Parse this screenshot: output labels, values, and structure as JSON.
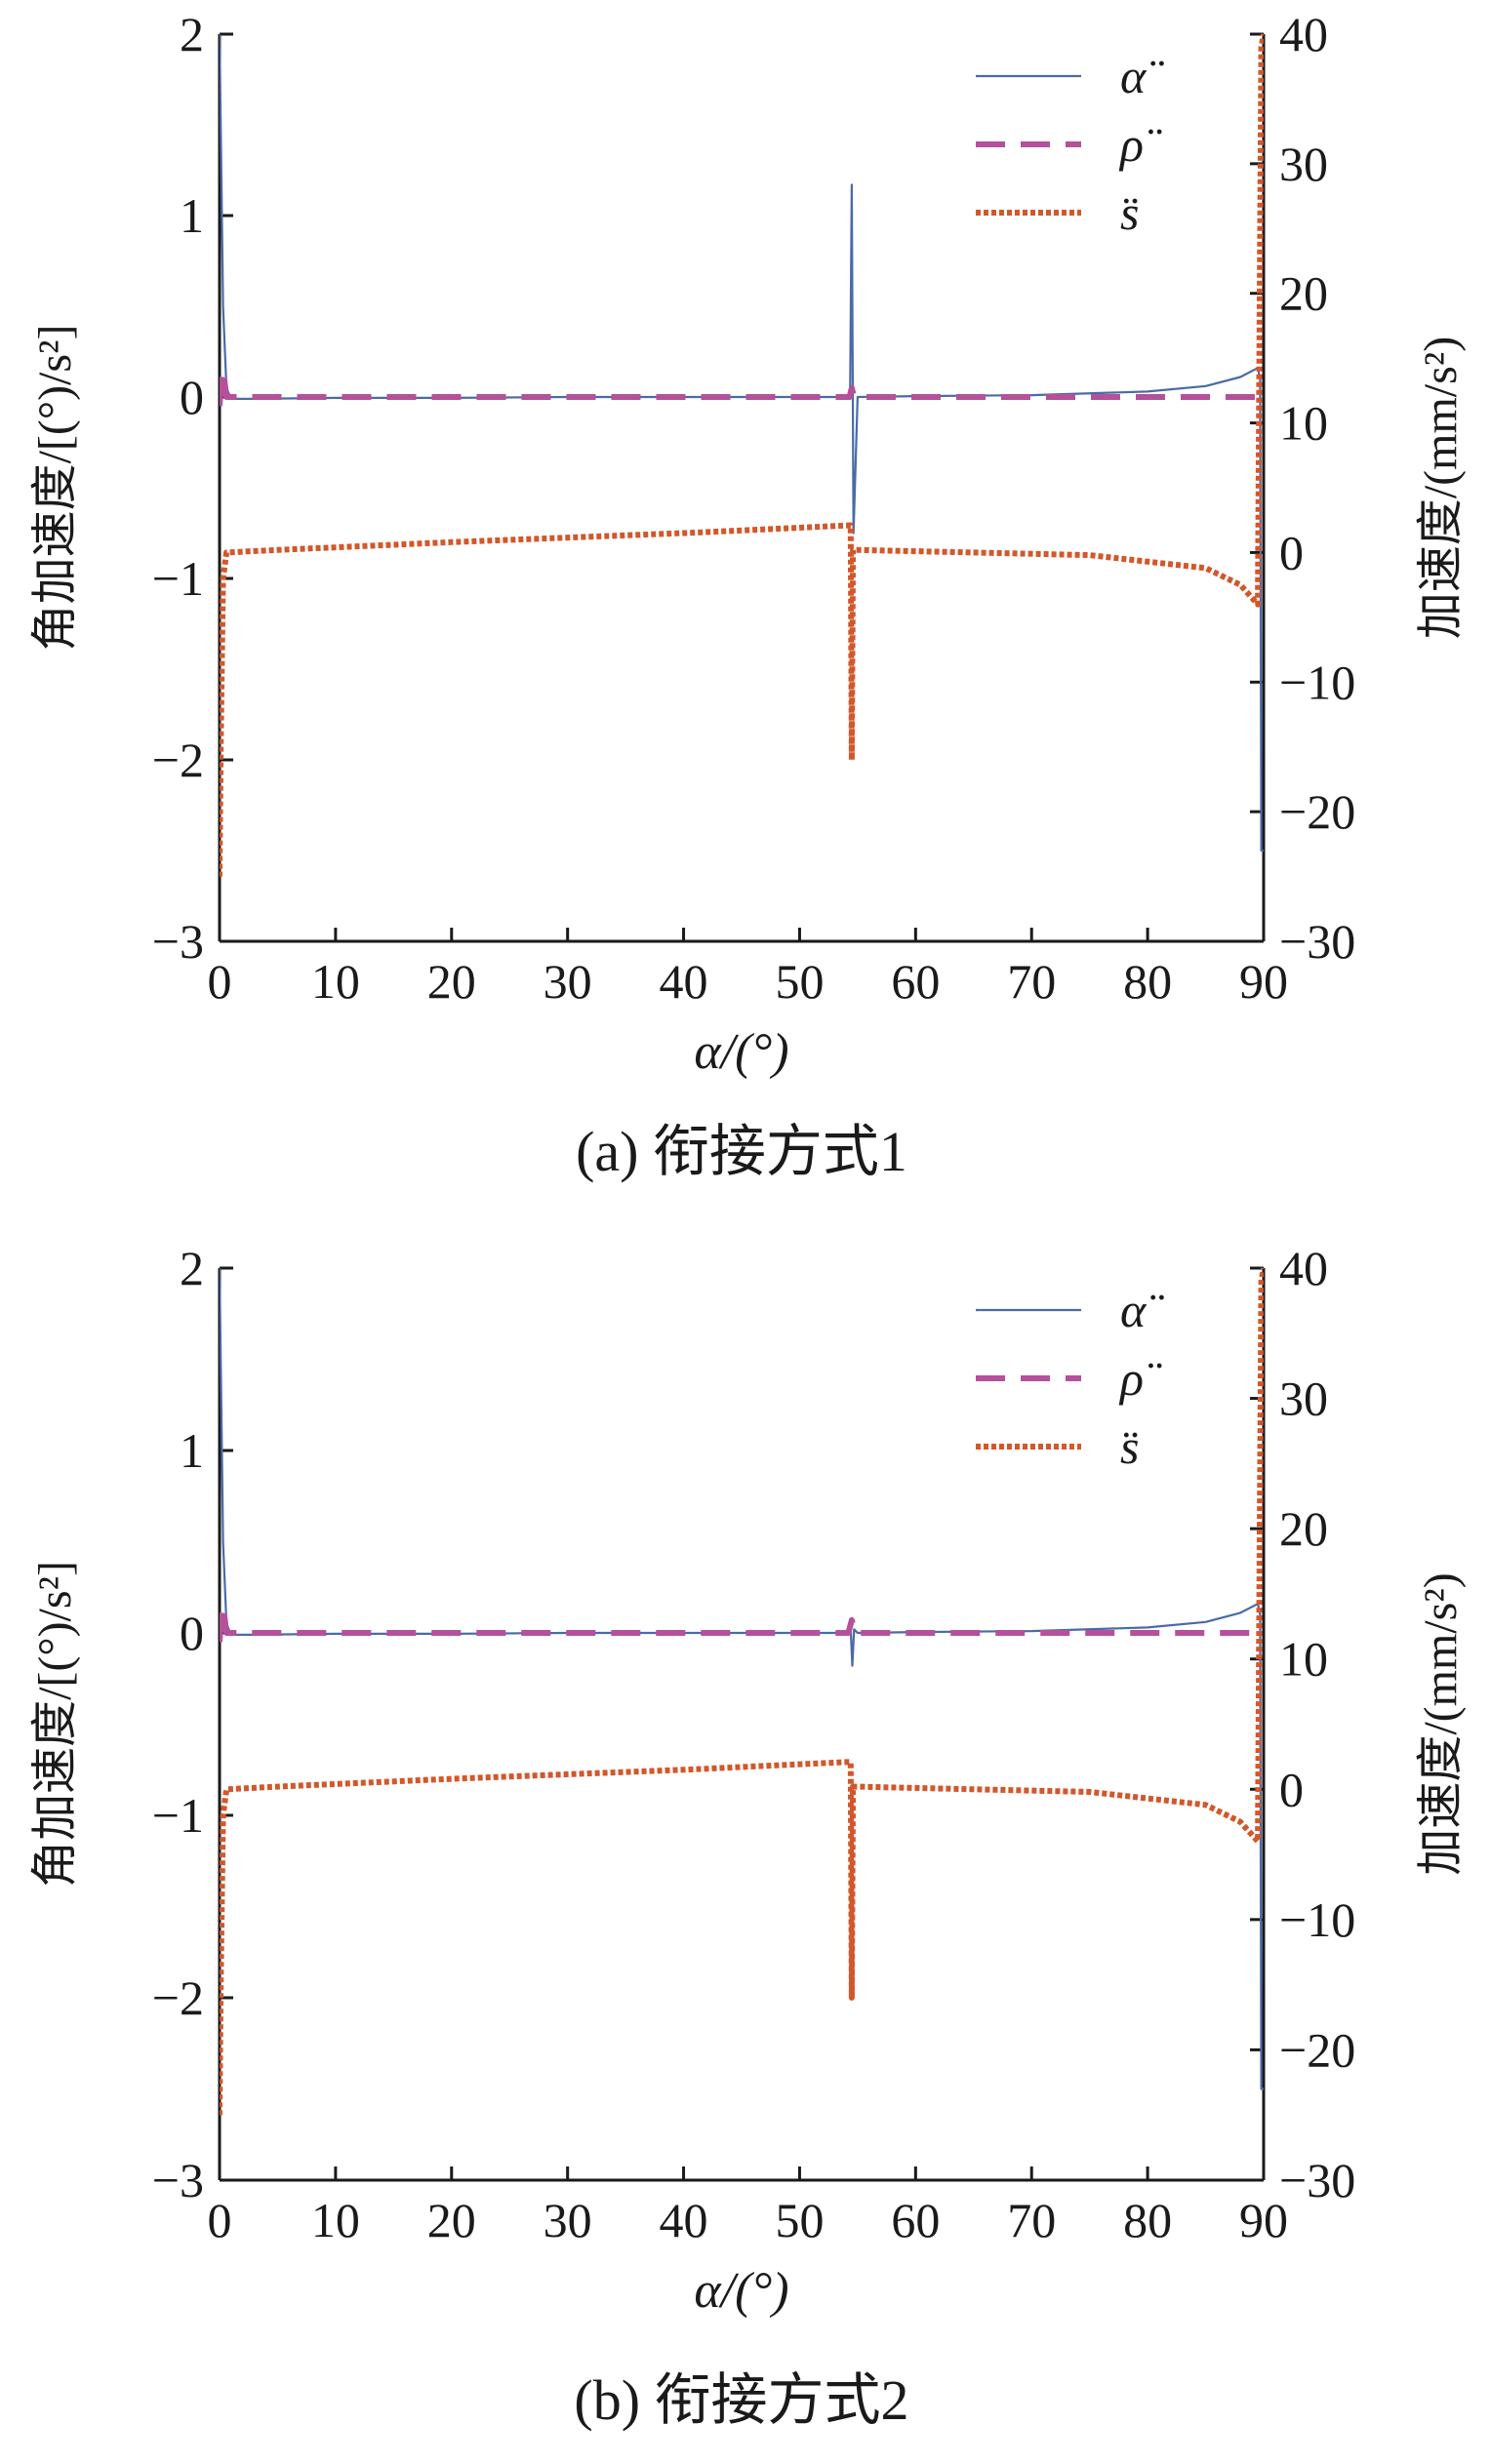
{
  "colors": {
    "alpha_line": "#4a6aa8",
    "rho_line": "#b4519a",
    "s_line": "#d2572a",
    "axis": "#1a1a1a"
  },
  "chart_data": [
    {
      "type": "line",
      "caption": "(a)  衔接方式1",
      "xlabel": "α/(°)",
      "ylabel_left": "角加速度/[(°)/s²]",
      "ylabel_right": "加速度/(mm/s²)",
      "xlim": [
        0,
        90
      ],
      "ylim_left": [
        -3,
        2
      ],
      "ylim_right": [
        -30,
        40
      ],
      "x_ticks": [
        "0",
        "10",
        "20",
        "30",
        "40",
        "50",
        "60",
        "70",
        "80",
        "90"
      ],
      "y_ticks_left": [
        "2",
        "1",
        "0",
        "−1",
        "−2",
        "−3"
      ],
      "y_ticks_right": [
        "40",
        "30",
        "20",
        "10",
        "0",
        "−10",
        "−20",
        "−30"
      ],
      "legend": {
        "placement": "top-right",
        "entries": [
          "α̈",
          "ρ̈",
          "s̈"
        ]
      },
      "series": [
        {
          "name": "α̈",
          "axis": "left",
          "style": "solid",
          "x": [
            0,
            0.1,
            0.3,
            0.6,
            1,
            3,
            10,
            20,
            30,
            40,
            50,
            54,
            54.35,
            54.5,
            54.65,
            55,
            60,
            70,
            80,
            85,
            88,
            89.5,
            89.7,
            89.8,
            90
          ],
          "y": [
            2.0,
            1.5,
            0.5,
            0.05,
            -0.01,
            -0.01,
            -0.005,
            -0.005,
            0,
            0,
            0,
            0,
            0,
            1.17,
            -0.75,
            0,
            0.005,
            0.01,
            0.03,
            0.06,
            0.11,
            0.16,
            0.1,
            -2.5,
            -2.5
          ]
        },
        {
          "name": "ρ̈",
          "axis": "left",
          "style": "dashed",
          "x": [
            0,
            0.2,
            0.4,
            0.6,
            1,
            10,
            20,
            30,
            40,
            50,
            54.3,
            54.5,
            54.7,
            60,
            70,
            80,
            90
          ],
          "y": [
            -0.05,
            0.15,
            0.1,
            0,
            0,
            0,
            0,
            0,
            0,
            0,
            0,
            0.05,
            0,
            0,
            0,
            0,
            0
          ]
        },
        {
          "name": "s̈",
          "axis": "right",
          "style": "dotted",
          "x": [
            0,
            0.1,
            0.3,
            0.6,
            5,
            20,
            40,
            54.4,
            54.5,
            54.6,
            55,
            65,
            75,
            85,
            88,
            89.5,
            89.6,
            89.8,
            90
          ],
          "y": [
            -25,
            -15,
            -2,
            0,
            0.2,
            0.8,
            1.5,
            2.1,
            -16,
            0.2,
            0.2,
            0,
            -0.2,
            -1.2,
            -2.5,
            -4,
            10,
            39,
            40
          ]
        }
      ]
    },
    {
      "type": "line",
      "caption": "(b)  衔接方式2",
      "xlabel": "α/(°)",
      "ylabel_left": "角加速度/[(°)/s²]",
      "ylabel_right": "加速度/(mm/s²)",
      "xlim": [
        0,
        90
      ],
      "ylim_left": [
        -3,
        2
      ],
      "ylim_right": [
        -30,
        40
      ],
      "x_ticks": [
        "0",
        "10",
        "20",
        "30",
        "40",
        "50",
        "60",
        "70",
        "80",
        "90"
      ],
      "y_ticks_left": [
        "2",
        "1",
        "0",
        "−1",
        "−2",
        "−3"
      ],
      "y_ticks_right": [
        "40",
        "30",
        "20",
        "10",
        "0",
        "−10",
        "−20",
        "−30"
      ],
      "legend": {
        "placement": "top-right",
        "entries": [
          "α̈",
          "ρ̈",
          "s̈"
        ]
      },
      "series": [
        {
          "name": "α̈",
          "axis": "left",
          "style": "solid",
          "x": [
            0,
            0.1,
            0.3,
            0.6,
            1,
            3,
            10,
            20,
            30,
            40,
            50,
            54.2,
            54.4,
            54.55,
            54.7,
            55,
            60,
            70,
            80,
            85,
            88,
            89.5,
            89.7,
            89.8,
            90
          ],
          "y": [
            2.0,
            1.5,
            0.5,
            0.05,
            -0.01,
            -0.01,
            -0.005,
            -0.005,
            0,
            0,
            0,
            0,
            0.02,
            -0.18,
            0.02,
            0,
            0.005,
            0.01,
            0.03,
            0.06,
            0.11,
            0.16,
            0.1,
            -2.5,
            -2.5
          ]
        },
        {
          "name": "ρ̈",
          "axis": "left",
          "style": "dashed",
          "x": [
            0,
            0.2,
            0.4,
            0.6,
            1,
            10,
            20,
            30,
            40,
            50,
            54.2,
            54.5,
            54.8,
            60,
            70,
            80,
            90
          ],
          "y": [
            -0.05,
            0.15,
            0.1,
            0,
            0,
            0,
            0,
            0,
            0,
            0,
            0,
            0.07,
            0,
            0,
            0,
            0,
            0
          ]
        },
        {
          "name": "s̈",
          "axis": "right",
          "style": "dotted",
          "x": [
            0,
            0.1,
            0.3,
            0.6,
            5,
            20,
            40,
            54.4,
            54.5,
            54.6,
            55,
            65,
            75,
            85,
            88,
            89.5,
            89.6,
            89.8,
            90
          ],
          "y": [
            -25,
            -15,
            -2,
            0,
            0.2,
            0.8,
            1.5,
            2.1,
            -16,
            0.2,
            0.2,
            0,
            -0.2,
            -1.2,
            -2.5,
            -4,
            10,
            39,
            40
          ]
        }
      ]
    }
  ]
}
